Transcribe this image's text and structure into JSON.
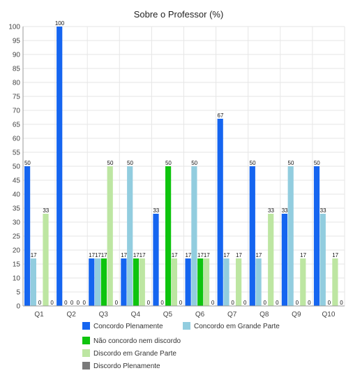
{
  "chart_data": {
    "type": "bar",
    "title": "Sobre o Professor (%)",
    "xlabel": "",
    "ylabel": "",
    "ylim": [
      0,
      100
    ],
    "yticks": [
      0,
      5,
      10,
      15,
      20,
      25,
      30,
      35,
      40,
      45,
      50,
      55,
      60,
      65,
      70,
      75,
      80,
      85,
      90,
      95,
      100
    ],
    "grid": true,
    "legend_position": "bottom",
    "categories": [
      "Q1",
      "Q2",
      "Q3",
      "Q4",
      "Q5",
      "Q6",
      "Q7",
      "Q8",
      "Q9",
      "Q10"
    ],
    "series": [
      {
        "name": "Concordo Plenamente",
        "color": "#1565f0",
        "values": [
          50,
          100,
          17,
          17,
          33,
          17,
          67,
          50,
          33,
          50
        ]
      },
      {
        "name": "Concordo em Grande Parte",
        "color": "#92cddf",
        "values": [
          17,
          0,
          17,
          50,
          0,
          50,
          17,
          17,
          50,
          33
        ]
      },
      {
        "name": "Não concordo nem discordo",
        "color": "#0ec40e",
        "values": [
          0,
          0,
          17,
          17,
          50,
          17,
          0,
          0,
          0,
          0
        ]
      },
      {
        "name": "Discordo em Grande Parte",
        "color": "#bde6a2",
        "values": [
          33,
          0,
          50,
          17,
          17,
          17,
          17,
          33,
          17,
          17
        ]
      },
      {
        "name": "Discordo Plenamente",
        "color": "#7a7a7a",
        "values": [
          0,
          0,
          0,
          0,
          0,
          0,
          0,
          0,
          0,
          0
        ]
      }
    ]
  }
}
